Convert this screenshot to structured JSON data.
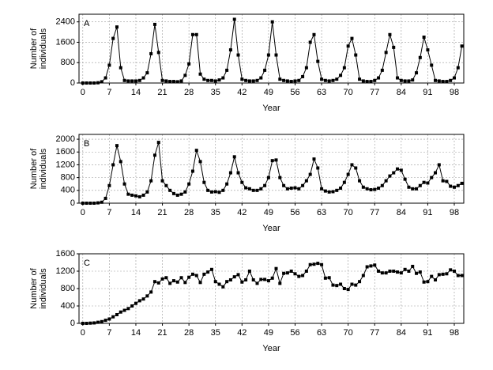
{
  "chart_data": [
    {
      "type": "line",
      "panel_label": "A",
      "x_label": "Year",
      "y_label": [
        "Number of",
        "individuals"
      ],
      "color": "#000000",
      "grid": true,
      "xlim": [
        -1,
        100.5
      ],
      "ylim": [
        0,
        2700
      ],
      "xticks": [
        0,
        7,
        14,
        21,
        28,
        35,
        42,
        49,
        56,
        63,
        70,
        77,
        84,
        91,
        98
      ],
      "yticks": [
        0,
        800,
        1600,
        2400
      ],
      "x": [
        0,
        1,
        2,
        3,
        4,
        5,
        6,
        7,
        8,
        9,
        10,
        11,
        12,
        13,
        14,
        15,
        16,
        17,
        18,
        19,
        20,
        21,
        22,
        23,
        24,
        25,
        26,
        27,
        28,
        29,
        30,
        31,
        32,
        33,
        34,
        35,
        36,
        37,
        38,
        39,
        40,
        41,
        42,
        43,
        44,
        45,
        46,
        47,
        48,
        49,
        50,
        51,
        52,
        53,
        54,
        55,
        56,
        57,
        58,
        59,
        60,
        61,
        62,
        63,
        64,
        65,
        66,
        67,
        68,
        69,
        70,
        71,
        72,
        73,
        74,
        75,
        76,
        77,
        78,
        79,
        80,
        81,
        82,
        83,
        84,
        85,
        86,
        87,
        88,
        89,
        90,
        91,
        92,
        93,
        94,
        95,
        96,
        97,
        98,
        99,
        100
      ],
      "values": [
        0,
        0,
        0,
        0,
        10,
        50,
        200,
        700,
        1750,
        2200,
        600,
        100,
        80,
        80,
        80,
        100,
        200,
        400,
        1150,
        2300,
        1200,
        100,
        80,
        60,
        60,
        50,
        80,
        300,
        750,
        1900,
        1900,
        350,
        150,
        100,
        100,
        80,
        120,
        200,
        500,
        1300,
        2500,
        1100,
        150,
        100,
        80,
        80,
        100,
        200,
        500,
        1100,
        2400,
        1100,
        150,
        100,
        80,
        60,
        80,
        100,
        250,
        600,
        1600,
        1900,
        850,
        150,
        100,
        80,
        100,
        150,
        300,
        600,
        1450,
        1750,
        1100,
        150,
        80,
        60,
        60,
        100,
        200,
        500,
        1200,
        1900,
        1400,
        200,
        100,
        80,
        80,
        120,
        400,
        1000,
        1800,
        1300,
        700,
        100,
        80,
        60,
        60,
        100,
        200,
        600,
        1450
      ]
    },
    {
      "type": "line",
      "panel_label": "B",
      "x_label": "Year",
      "y_label": [
        "Number of",
        "individuals"
      ],
      "color": "#000000",
      "grid": true,
      "xlim": [
        -1,
        100.5
      ],
      "ylim": [
        0,
        2150
      ],
      "xticks": [
        0,
        7,
        14,
        21,
        28,
        35,
        42,
        49,
        56,
        63,
        70,
        77,
        84,
        91,
        98
      ],
      "yticks": [
        0,
        400,
        800,
        1200,
        1600,
        2000
      ],
      "x": [
        0,
        1,
        2,
        3,
        4,
        5,
        6,
        7,
        8,
        9,
        10,
        11,
        12,
        13,
        14,
        15,
        16,
        17,
        18,
        19,
        20,
        21,
        22,
        23,
        24,
        25,
        26,
        27,
        28,
        29,
        30,
        31,
        32,
        33,
        34,
        35,
        36,
        37,
        38,
        39,
        40,
        41,
        42,
        43,
        44,
        45,
        46,
        47,
        48,
        49,
        50,
        51,
        52,
        53,
        54,
        55,
        56,
        57,
        58,
        59,
        60,
        61,
        62,
        63,
        64,
        65,
        66,
        67,
        68,
        69,
        70,
        71,
        72,
        73,
        74,
        75,
        76,
        77,
        78,
        79,
        80,
        81,
        82,
        83,
        84,
        85,
        86,
        87,
        88,
        89,
        90,
        91,
        92,
        93,
        94,
        95,
        96,
        97,
        98,
        99,
        100
      ],
      "values": [
        0,
        0,
        0,
        0,
        10,
        30,
        150,
        550,
        1200,
        1800,
        1300,
        600,
        280,
        250,
        230,
        200,
        250,
        350,
        700,
        1500,
        1900,
        700,
        550,
        400,
        300,
        250,
        280,
        350,
        600,
        1000,
        1650,
        1300,
        650,
        400,
        350,
        360,
        340,
        400,
        600,
        950,
        1450,
        950,
        650,
        480,
        450,
        400,
        400,
        450,
        550,
        800,
        1330,
        1350,
        800,
        550,
        450,
        470,
        480,
        450,
        550,
        700,
        900,
        1380,
        1100,
        450,
        380,
        350,
        360,
        400,
        470,
        650,
        900,
        1200,
        1100,
        700,
        500,
        450,
        420,
        430,
        470,
        550,
        700,
        850,
        950,
        1070,
        1030,
        750,
        500,
        450,
        450,
        550,
        650,
        630,
        800,
        950,
        1200,
        700,
        680,
        530,
        500,
        550,
        620
      ]
    },
    {
      "type": "line",
      "panel_label": "C",
      "x_label": "Year",
      "y_label": [
        "Number  of",
        "individuals"
      ],
      "color": "#000000",
      "grid": true,
      "xlim": [
        -1,
        100.5
      ],
      "ylim": [
        0,
        1600
      ],
      "xticks": [
        0,
        7,
        14,
        21,
        28,
        35,
        42,
        49,
        56,
        63,
        70,
        77,
        84,
        91,
        98
      ],
      "yticks": [
        0,
        400,
        800,
        1200,
        1600
      ],
      "x": [
        0,
        1,
        2,
        3,
        4,
        5,
        6,
        7,
        8,
        9,
        10,
        11,
        12,
        13,
        14,
        15,
        16,
        17,
        18,
        19,
        20,
        21,
        22,
        23,
        24,
        25,
        26,
        27,
        28,
        29,
        30,
        31,
        32,
        33,
        34,
        35,
        36,
        37,
        38,
        39,
        40,
        41,
        42,
        43,
        44,
        45,
        46,
        47,
        48,
        49,
        50,
        51,
        52,
        53,
        54,
        55,
        56,
        57,
        58,
        59,
        60,
        61,
        62,
        63,
        64,
        65,
        66,
        67,
        68,
        69,
        70,
        71,
        72,
        73,
        74,
        75,
        76,
        77,
        78,
        79,
        80,
        81,
        82,
        83,
        84,
        85,
        86,
        87,
        88,
        89,
        90,
        91,
        92,
        93,
        94,
        95,
        96,
        97,
        98,
        99,
        100
      ],
      "values": [
        0,
        0,
        5,
        10,
        25,
        40,
        70,
        100,
        150,
        200,
        260,
        300,
        340,
        400,
        460,
        520,
        560,
        630,
        720,
        960,
        930,
        1020,
        1050,
        920,
        980,
        950,
        1050,
        940,
        1060,
        1130,
        1100,
        940,
        1130,
        1180,
        1240,
        960,
        900,
        840,
        960,
        1000,
        1070,
        1120,
        950,
        1000,
        1200,
        1000,
        920,
        1010,
        1010,
        980,
        1040,
        1260,
        920,
        1150,
        1160,
        1200,
        1140,
        1080,
        1100,
        1200,
        1350,
        1360,
        1380,
        1350,
        1040,
        1050,
        880,
        870,
        900,
        800,
        780,
        900,
        880,
        960,
        1100,
        1300,
        1320,
        1340,
        1200,
        1160,
        1160,
        1200,
        1200,
        1180,
        1160,
        1240,
        1200,
        1310,
        1150,
        1180,
        950,
        960,
        1080,
        1000,
        1120,
        1130,
        1140,
        1230,
        1200,
        1100,
        1100
      ]
    }
  ]
}
